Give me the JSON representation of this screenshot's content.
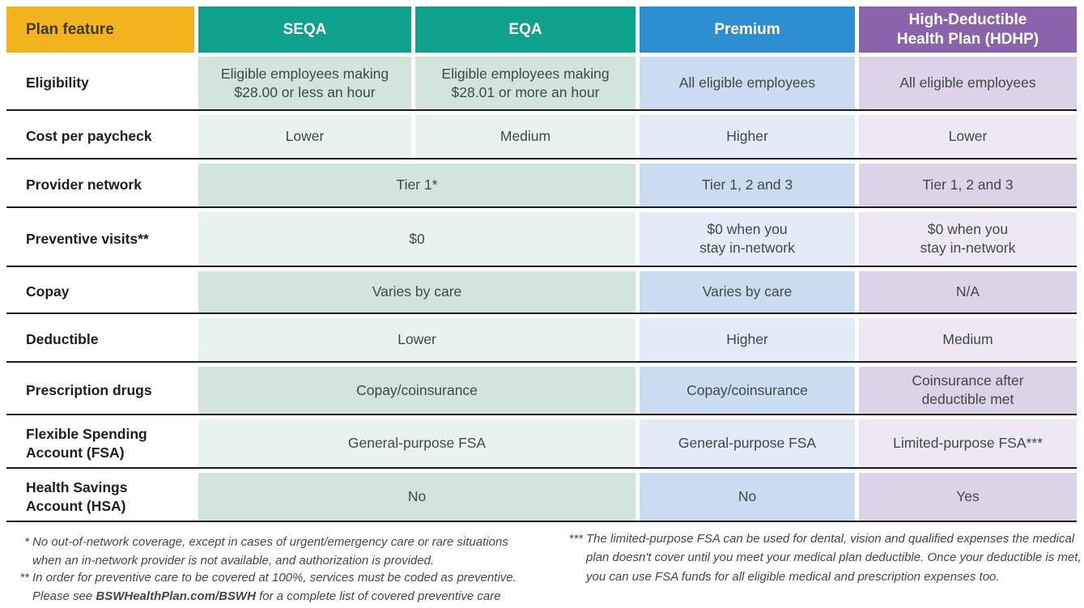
{
  "table": {
    "feature_header": "Plan feature",
    "columns": [
      "SEQA",
      "EQA",
      "Premium",
      "High-Deductible\nHealth Plan (HDHP)"
    ],
    "rows": [
      {
        "label": "Eligibility",
        "seqa": "Eligible employees making\n$28.00 or less an hour",
        "eqa": "Eligible employees making\n$28.01 or more an hour",
        "premium": "All eligible employees",
        "hdhp": "All eligible employees"
      },
      {
        "label": "Cost per paycheck",
        "seqa": "Lower",
        "eqa": "Medium",
        "premium": "Higher",
        "hdhp": "Lower"
      },
      {
        "label": "Provider network",
        "seqa_eqa": "Tier 1*",
        "premium": "Tier 1, 2 and 3",
        "hdhp": "Tier 1, 2 and 3"
      },
      {
        "label": "Preventive visits**",
        "seqa_eqa": "$0",
        "premium": "$0 when you\nstay in-network",
        "hdhp": "$0 when you\nstay in-network"
      },
      {
        "label": "Copay",
        "seqa_eqa": "Varies by care",
        "premium": "Varies by care",
        "hdhp": "N/A"
      },
      {
        "label": "Deductible",
        "seqa_eqa": "Lower",
        "premium": "Higher",
        "hdhp": "Medium"
      },
      {
        "label": "Prescription drugs",
        "seqa_eqa": "Copay/coinsurance",
        "premium": "Copay/coinsurance",
        "hdhp": "Coinsurance after\ndeductible met"
      },
      {
        "label": "Flexible Spending\nAccount (FSA)",
        "seqa_eqa": "General-purpose FSA",
        "premium": "General-purpose FSA",
        "hdhp": "Limited-purpose FSA***"
      },
      {
        "label": "Health Savings\nAccount (HSA)",
        "seqa_eqa": "No",
        "premium": "No",
        "hdhp": "Yes"
      }
    ]
  },
  "footnotes": {
    "note1": {
      "marker": "*",
      "text": "No out-of-network coverage, except in cases of urgent/emergency care or rare situations\nwhen an in-network provider is not available, and authorization is provided."
    },
    "note2": {
      "marker": "**",
      "pre": "In order for preventive care to be covered at 100%, services must be coded as preventive.\nPlease see ",
      "bold": "BSWHealthPlan.com/BSWH",
      "post": " for a complete list of covered preventive care services."
    },
    "note3": {
      "marker": "***",
      "text": "The limited-purpose FSA can be used for dental, vision and qualified expenses the medical\nplan doesn't cover until you meet your medical plan deductible. Once your deductible is met,\nyou can use FSA funds for all eligible medical and prescription expenses too."
    }
  },
  "colors": {
    "plan_feature_header": "#F2B31F",
    "seqa_eqa_header": "#0FA28A",
    "premium_header": "#2E8FD0",
    "hdhp_header": "#8A63AD",
    "green_tint_dark": "#D2E5DD",
    "green_tint_light": "#E9F2EE",
    "blue_tint_dark": "#CBDCF1",
    "blue_tint_light": "#E3EBF8",
    "purple_tint_dark": "#DDD3E8",
    "purple_tint_light": "#EDE8F4",
    "row_separator": "#1C1C1C"
  }
}
